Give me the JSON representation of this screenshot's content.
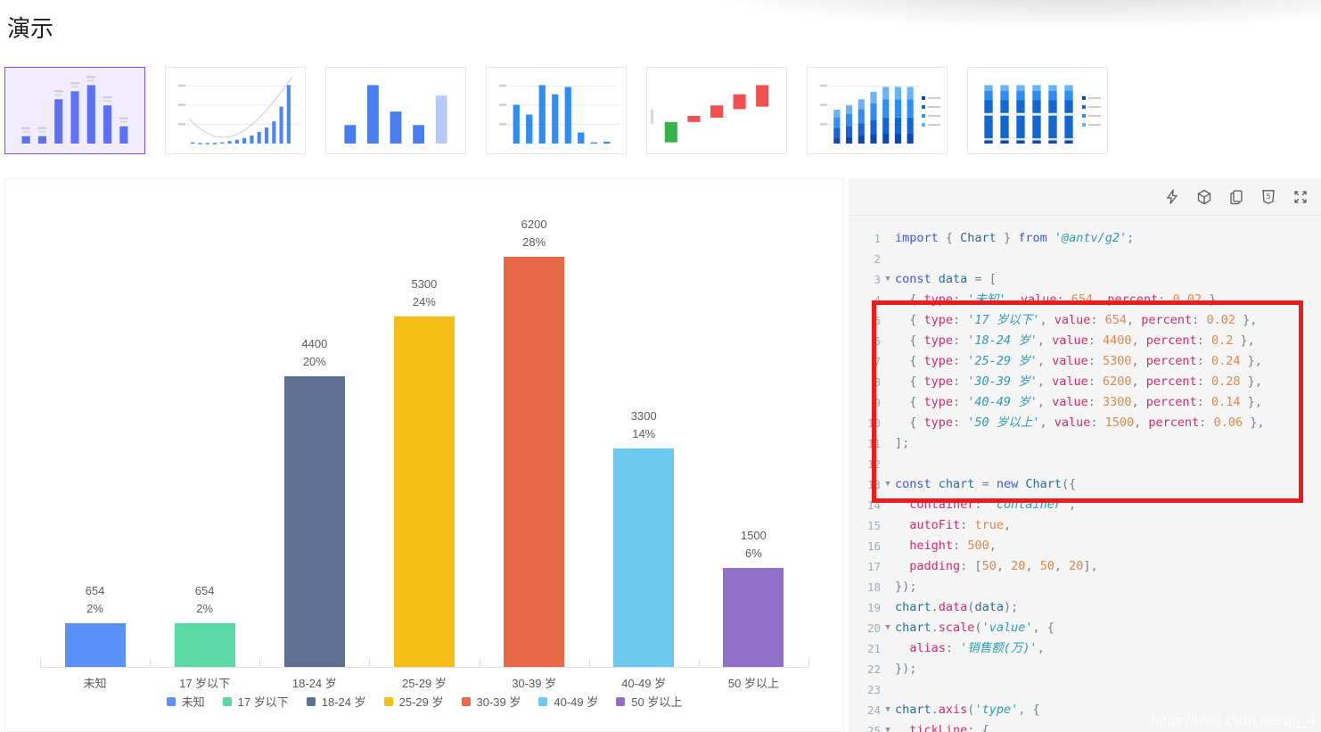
{
  "page": {
    "title": "演示"
  },
  "colors": {
    "accent_selected_thumb": "#7b53e8",
    "annotation_box": "#ec1c1c",
    "thumb_blue": "#5b73f2"
  },
  "thumbnails": [
    {
      "name": "thumb-column-labeled",
      "selected": true,
      "type": "bars",
      "bars": [
        12,
        12,
        72,
        85,
        95,
        62,
        28
      ],
      "color": "#5b73f2",
      "tiny_labels": true
    },
    {
      "name": "thumb-histogram-curve",
      "selected": false,
      "type": "histogram",
      "bars": [
        2,
        1,
        1,
        1,
        2,
        4,
        6,
        9,
        13,
        19,
        26,
        36,
        60,
        95
      ],
      "color": "#4a86f5",
      "curve": true,
      "grid": true
    },
    {
      "name": "thumb-column-highlight",
      "selected": false,
      "type": "bars",
      "bars": [
        30,
        95,
        52,
        30,
        78
      ],
      "color": "#4a7df0",
      "light_index": 4
    },
    {
      "name": "thumb-column-basic",
      "selected": false,
      "type": "bars",
      "bars": [
        63,
        47,
        95,
        80,
        92,
        18,
        2,
        3
      ],
      "color": "#2f8ef2",
      "grid": true
    },
    {
      "name": "thumb-waterfall",
      "selected": false,
      "type": "waterfall",
      "floats": [
        {
          "b": 2,
          "h": 33,
          "c": "#36b24a"
        },
        {
          "b": 35,
          "h": 10,
          "c": "#f25050"
        },
        {
          "b": 42,
          "h": 20,
          "c": "#f25050"
        },
        {
          "b": 56,
          "h": 24,
          "c": "#f25050"
        },
        {
          "b": 60,
          "h": 35,
          "c": "#f25050"
        }
      ]
    },
    {
      "name": "thumb-stacked-column",
      "selected": false,
      "type": "stacked",
      "heights": [
        55,
        62,
        72,
        84,
        92,
        92,
        92
      ],
      "seg_fracs": [
        0.18,
        0.28,
        0.32,
        0.22
      ],
      "seg_colors": [
        "#0d47b5",
        "#1565d8",
        "#2f8ef2",
        "#6ab3f7"
      ],
      "legend": 4,
      "grid": true
    },
    {
      "name": "thumb-stacked-percent",
      "selected": false,
      "type": "stacked",
      "heights": [
        95,
        95,
        95,
        95,
        95,
        95
      ],
      "seg_fracs": [
        0.06,
        0.68,
        0.16,
        0.1
      ],
      "seg_colors": [
        "#0d47b5",
        "#1268d1",
        "#2f8ef2",
        "#6ab3f7"
      ],
      "legend": 4,
      "white_labels": true
    }
  ],
  "chart_data": {
    "type": "bar",
    "categories": [
      "未知",
      "17 岁以下",
      "18-24 岁",
      "25-29 岁",
      "30-39 岁",
      "40-49 岁",
      "50 岁以上"
    ],
    "values": [
      654,
      654,
      4400,
      5300,
      6200,
      3300,
      1500
    ],
    "percent_labels": [
      "2%",
      "2%",
      "20%",
      "24%",
      "28%",
      "14%",
      "6%"
    ],
    "colors": [
      "#5B8FF9",
      "#5AD8A6",
      "#5D7092",
      "#F6BD16",
      "#E8684A",
      "#6DC8EC",
      "#9270CA"
    ],
    "title": "",
    "xlabel": "",
    "ylabel": "销售额(万)",
    "ylim": [
      0,
      6200
    ],
    "grid": false,
    "legend_position": "bottom",
    "legend_items": [
      "未知",
      "17 岁以下",
      "18-24 岁",
      "25-29 岁",
      "30-39 岁",
      "40-49 岁",
      "50 岁以上"
    ]
  },
  "code_panel": {
    "toolbar_icons": [
      "run-icon",
      "codesandbox-icon",
      "copy-icon",
      "html-icon",
      "fullscreen-icon"
    ],
    "watermark": "https://blog.csdn.net/qq_4",
    "annotation": "red box highlighting data array lines 3-12",
    "lines": [
      {
        "n": 1,
        "fold": false,
        "tk": [
          [
            "kw",
            "import"
          ],
          [
            "pl",
            " { "
          ],
          [
            "id",
            "Chart"
          ],
          [
            "pl",
            " } "
          ],
          [
            "kw",
            "from"
          ],
          [
            "pl",
            " "
          ],
          [
            "str",
            "'@antv/g2'"
          ],
          [
            "pl",
            ";"
          ]
        ]
      },
      {
        "n": 2,
        "fold": false,
        "tk": []
      },
      {
        "n": 3,
        "fold": true,
        "tk": [
          [
            "kw",
            "const"
          ],
          [
            "pl",
            " "
          ],
          [
            "id",
            "data"
          ],
          [
            "op",
            " = "
          ],
          [
            "pl",
            "["
          ]
        ]
      },
      {
        "n": 4,
        "fold": false,
        "tk": [
          [
            "pl",
            "  { "
          ],
          [
            "prop",
            "type"
          ],
          [
            "pl",
            ": "
          ],
          [
            "str",
            "'未知'"
          ],
          [
            "pl",
            ", "
          ],
          [
            "prop",
            "value"
          ],
          [
            "pl",
            ": "
          ],
          [
            "num",
            "654"
          ],
          [
            "pl",
            ", "
          ],
          [
            "prop",
            "percent"
          ],
          [
            "pl",
            ": "
          ],
          [
            "num",
            "0.02"
          ],
          [
            "pl",
            " },"
          ]
        ]
      },
      {
        "n": 5,
        "fold": false,
        "tk": [
          [
            "pl",
            "  { "
          ],
          [
            "prop",
            "type"
          ],
          [
            "pl",
            ": "
          ],
          [
            "str",
            "'17 岁以下'"
          ],
          [
            "pl",
            ", "
          ],
          [
            "prop",
            "value"
          ],
          [
            "pl",
            ": "
          ],
          [
            "num",
            "654"
          ],
          [
            "pl",
            ", "
          ],
          [
            "prop",
            "percent"
          ],
          [
            "pl",
            ": "
          ],
          [
            "num",
            "0.02"
          ],
          [
            "pl",
            " },"
          ]
        ]
      },
      {
        "n": 6,
        "fold": false,
        "tk": [
          [
            "pl",
            "  { "
          ],
          [
            "prop",
            "type"
          ],
          [
            "pl",
            ": "
          ],
          [
            "str",
            "'18-24 岁'"
          ],
          [
            "pl",
            ", "
          ],
          [
            "prop",
            "value"
          ],
          [
            "pl",
            ": "
          ],
          [
            "num",
            "4400"
          ],
          [
            "pl",
            ", "
          ],
          [
            "prop",
            "percent"
          ],
          [
            "pl",
            ": "
          ],
          [
            "num",
            "0.2"
          ],
          [
            "pl",
            " },"
          ]
        ]
      },
      {
        "n": 7,
        "fold": false,
        "tk": [
          [
            "pl",
            "  { "
          ],
          [
            "prop",
            "type"
          ],
          [
            "pl",
            ": "
          ],
          [
            "str",
            "'25-29 岁'"
          ],
          [
            "pl",
            ", "
          ],
          [
            "prop",
            "value"
          ],
          [
            "pl",
            ": "
          ],
          [
            "num",
            "5300"
          ],
          [
            "pl",
            ", "
          ],
          [
            "prop",
            "percent"
          ],
          [
            "pl",
            ": "
          ],
          [
            "num",
            "0.24"
          ],
          [
            "pl",
            " },"
          ]
        ]
      },
      {
        "n": 8,
        "fold": false,
        "tk": [
          [
            "pl",
            "  { "
          ],
          [
            "prop",
            "type"
          ],
          [
            "pl",
            ": "
          ],
          [
            "str",
            "'30-39 岁'"
          ],
          [
            "pl",
            ", "
          ],
          [
            "prop",
            "value"
          ],
          [
            "pl",
            ": "
          ],
          [
            "num",
            "6200"
          ],
          [
            "pl",
            ", "
          ],
          [
            "prop",
            "percent"
          ],
          [
            "pl",
            ": "
          ],
          [
            "num",
            "0.28"
          ],
          [
            "pl",
            " },"
          ]
        ]
      },
      {
        "n": 9,
        "fold": false,
        "tk": [
          [
            "pl",
            "  { "
          ],
          [
            "prop",
            "type"
          ],
          [
            "pl",
            ": "
          ],
          [
            "str",
            "'40-49 岁'"
          ],
          [
            "pl",
            ", "
          ],
          [
            "prop",
            "value"
          ],
          [
            "pl",
            ": "
          ],
          [
            "num",
            "3300"
          ],
          [
            "pl",
            ", "
          ],
          [
            "prop",
            "percent"
          ],
          [
            "pl",
            ": "
          ],
          [
            "num",
            "0.14"
          ],
          [
            "pl",
            " },"
          ]
        ]
      },
      {
        "n": 10,
        "fold": false,
        "tk": [
          [
            "pl",
            "  { "
          ],
          [
            "prop",
            "type"
          ],
          [
            "pl",
            ": "
          ],
          [
            "str",
            "'50 岁以上'"
          ],
          [
            "pl",
            ", "
          ],
          [
            "prop",
            "value"
          ],
          [
            "pl",
            ": "
          ],
          [
            "num",
            "1500"
          ],
          [
            "pl",
            ", "
          ],
          [
            "prop",
            "percent"
          ],
          [
            "pl",
            ": "
          ],
          [
            "num",
            "0.06"
          ],
          [
            "pl",
            " },"
          ]
        ]
      },
      {
        "n": 11,
        "fold": false,
        "tk": [
          [
            "pl",
            "];"
          ]
        ]
      },
      {
        "n": 12,
        "fold": false,
        "tk": []
      },
      {
        "n": 13,
        "fold": true,
        "tk": [
          [
            "kw",
            "const"
          ],
          [
            "pl",
            " "
          ],
          [
            "id",
            "chart"
          ],
          [
            "op",
            " = "
          ],
          [
            "kw",
            "new"
          ],
          [
            "pl",
            " "
          ],
          [
            "id",
            "Chart"
          ],
          [
            "pl",
            "({"
          ]
        ]
      },
      {
        "n": 14,
        "fold": false,
        "tk": [
          [
            "pl",
            "  "
          ],
          [
            "prop",
            "container"
          ],
          [
            "pl",
            ": "
          ],
          [
            "str",
            "'container'"
          ],
          [
            "pl",
            ","
          ]
        ]
      },
      {
        "n": 15,
        "fold": false,
        "tk": [
          [
            "pl",
            "  "
          ],
          [
            "prop",
            "autoFit"
          ],
          [
            "pl",
            ": "
          ],
          [
            "num",
            "true"
          ],
          [
            "pl",
            ","
          ]
        ]
      },
      {
        "n": 16,
        "fold": false,
        "tk": [
          [
            "pl",
            "  "
          ],
          [
            "prop",
            "height"
          ],
          [
            "pl",
            ": "
          ],
          [
            "num",
            "500"
          ],
          [
            "pl",
            ","
          ]
        ]
      },
      {
        "n": 17,
        "fold": false,
        "tk": [
          [
            "pl",
            "  "
          ],
          [
            "prop",
            "padding"
          ],
          [
            "pl",
            ": ["
          ],
          [
            "num",
            "50"
          ],
          [
            "pl",
            ", "
          ],
          [
            "num",
            "20"
          ],
          [
            "pl",
            ", "
          ],
          [
            "num",
            "50"
          ],
          [
            "pl",
            ", "
          ],
          [
            "num",
            "20"
          ],
          [
            "pl",
            "],"
          ]
        ]
      },
      {
        "n": 18,
        "fold": false,
        "tk": [
          [
            "pl",
            "});"
          ]
        ]
      },
      {
        "n": 19,
        "fold": false,
        "tk": [
          [
            "id",
            "chart"
          ],
          [
            "pl",
            "."
          ],
          [
            "prop",
            "data"
          ],
          [
            "pl",
            "("
          ],
          [
            "id",
            "data"
          ],
          [
            "pl",
            ");"
          ]
        ]
      },
      {
        "n": 20,
        "fold": true,
        "tk": [
          [
            "id",
            "chart"
          ],
          [
            "pl",
            "."
          ],
          [
            "prop",
            "scale"
          ],
          [
            "pl",
            "("
          ],
          [
            "str",
            "'value'"
          ],
          [
            "pl",
            ", {"
          ]
        ]
      },
      {
        "n": 21,
        "fold": false,
        "tk": [
          [
            "pl",
            "  "
          ],
          [
            "prop",
            "alias"
          ],
          [
            "pl",
            ": "
          ],
          [
            "str",
            "'销售额(万)'"
          ],
          [
            "pl",
            ","
          ]
        ]
      },
      {
        "n": 22,
        "fold": false,
        "tk": [
          [
            "pl",
            "});"
          ]
        ]
      },
      {
        "n": 23,
        "fold": false,
        "tk": []
      },
      {
        "n": 24,
        "fold": true,
        "tk": [
          [
            "id",
            "chart"
          ],
          [
            "pl",
            "."
          ],
          [
            "prop",
            "axis"
          ],
          [
            "pl",
            "("
          ],
          [
            "str",
            "'type'"
          ],
          [
            "pl",
            ", {"
          ]
        ]
      },
      {
        "n": 25,
        "fold": true,
        "tk": [
          [
            "pl",
            "  "
          ],
          [
            "prop",
            "tickLine"
          ],
          [
            "pl",
            ": {"
          ]
        ]
      }
    ]
  }
}
